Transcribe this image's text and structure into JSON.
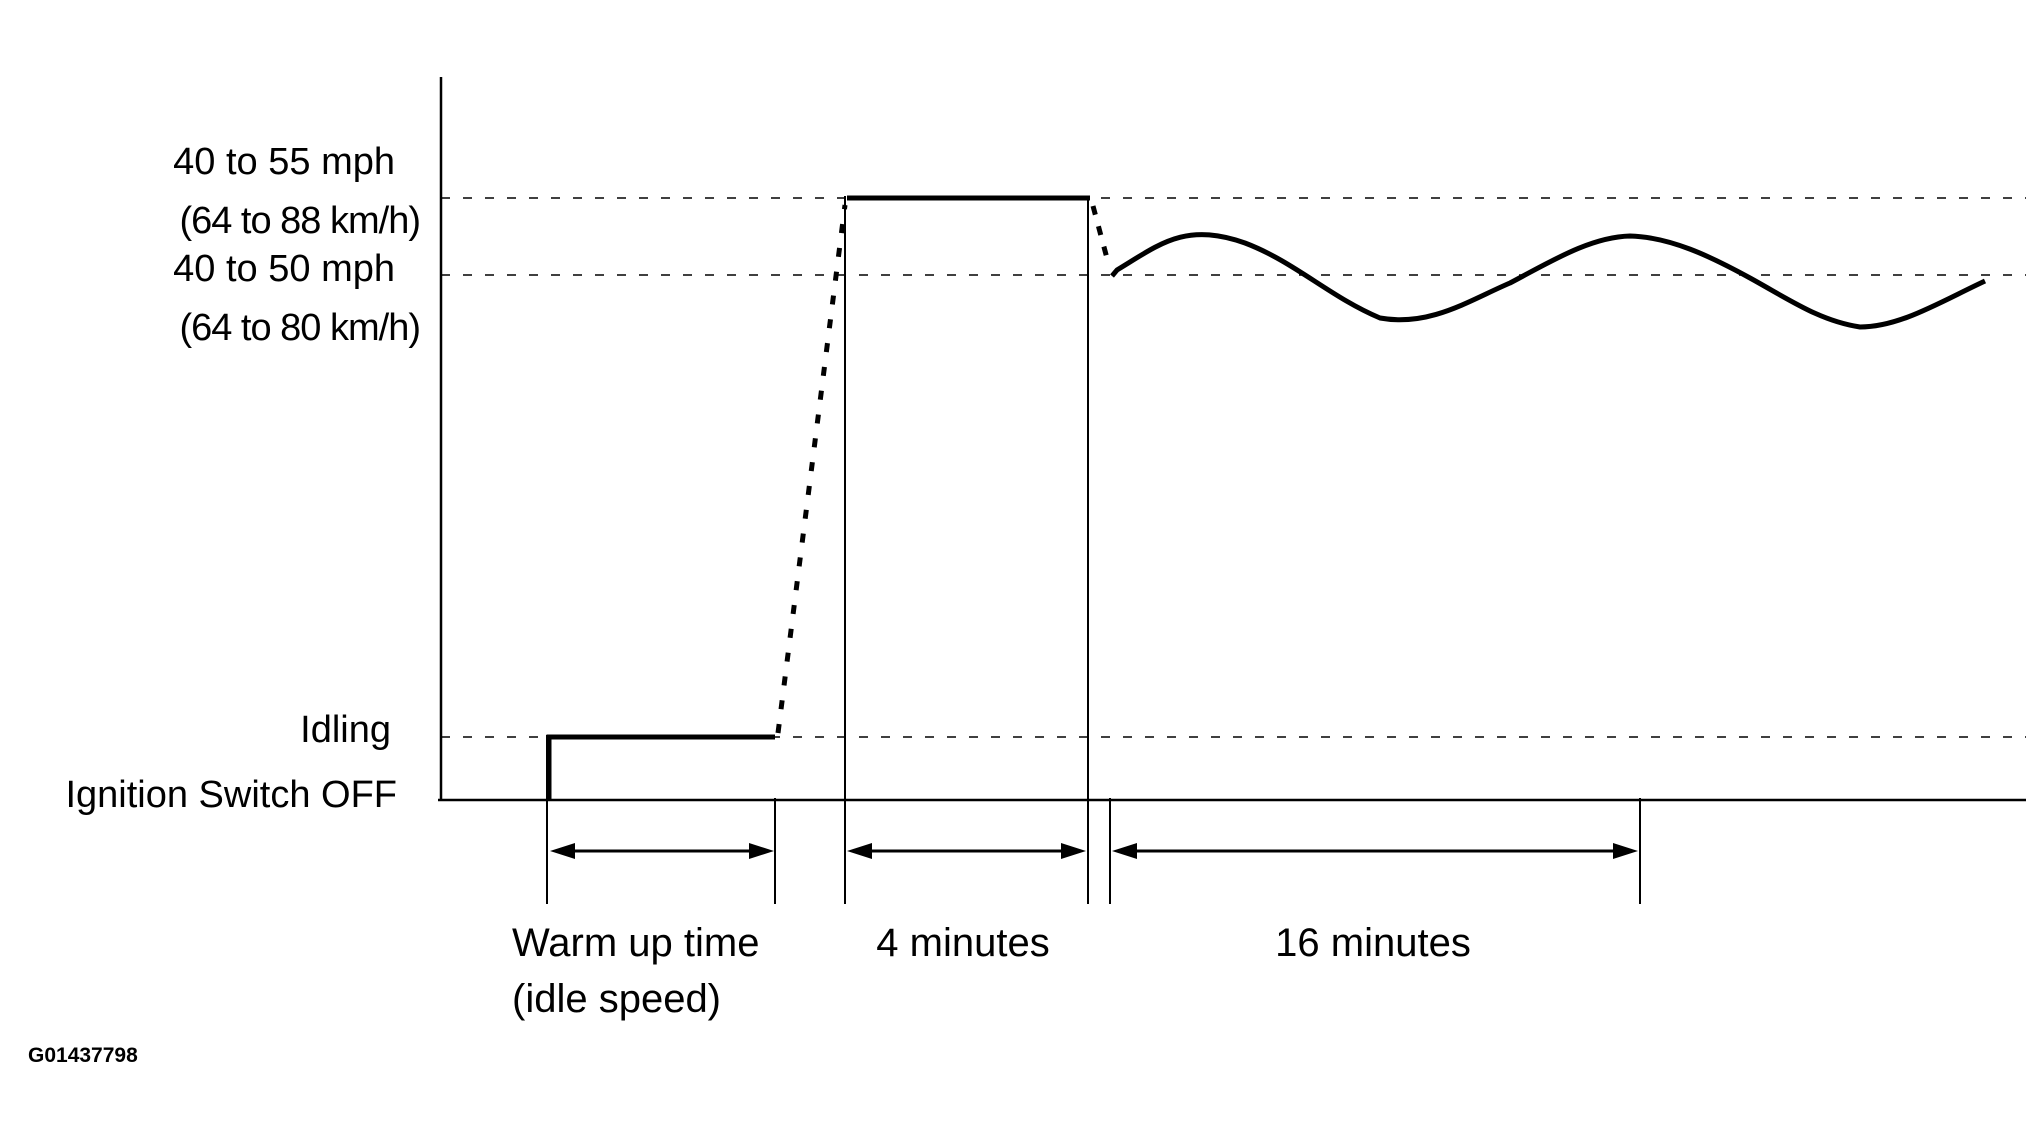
{
  "y_labels": {
    "high_mph": "40 to 55 mph",
    "high_kmh": "(64 to 88 km/h)",
    "mid_mph": "40 to 50 mph",
    "mid_kmh": "(64 to 80 km/h)",
    "idling": "Idling",
    "ignition_off": "Ignition Switch OFF"
  },
  "segments": {
    "warmup_line1": "Warm up time",
    "warmup_line2": "(idle speed)",
    "four_minutes": "4 minutes",
    "sixteen_minutes": "16 minutes"
  },
  "figure_code": "G01437798"
}
